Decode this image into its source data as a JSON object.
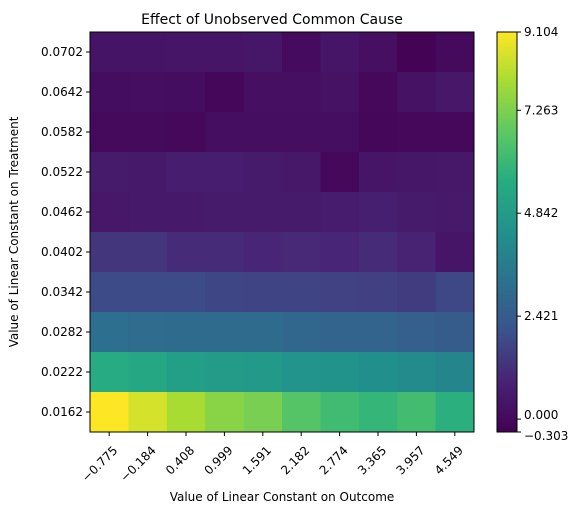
{
  "chart_data": {
    "type": "heatmap",
    "title": "Effect of Unobserved Common Cause",
    "xlabel": "Value of Linear Constant on Outcome",
    "ylabel": "Value of Linear Constant on Treatment",
    "x_tick_labels": [
      "−0.775",
      "−0.184",
      "0.408",
      "0.999",
      "1.591",
      "2.182",
      "2.774",
      "3.365",
      "3.957",
      "4.549"
    ],
    "y_tick_labels": [
      "0.0702",
      "0.0642",
      "0.0582",
      "0.0522",
      "0.0462",
      "0.0402",
      "0.0342",
      "0.0282",
      "0.0222",
      "0.0162"
    ],
    "colormap": "viridis",
    "value_range": [
      -0.303,
      9.104
    ],
    "colorbar_ticks": [
      "−0.303",
      "0.000",
      "2.421",
      "4.842",
      "7.263",
      "9.104"
    ],
    "colorbar_tick_values": [
      -0.303,
      0.0,
      2.421,
      4.842,
      7.263,
      9.104
    ],
    "values": [
      [
        0.35,
        0.35,
        0.4,
        0.4,
        0.45,
        0.05,
        0.4,
        0.2,
        -0.25,
        0.0
      ],
      [
        0.1,
        0.15,
        0.1,
        -0.1,
        0.2,
        0.2,
        0.3,
        -0.05,
        0.3,
        0.5
      ],
      [
        0.0,
        0.0,
        -0.05,
        0.15,
        0.15,
        0.15,
        0.15,
        -0.1,
        -0.05,
        -0.05
      ],
      [
        0.6,
        0.55,
        0.7,
        0.7,
        0.6,
        0.5,
        -0.05,
        0.4,
        0.45,
        0.5
      ],
      [
        0.5,
        0.55,
        0.55,
        0.6,
        0.6,
        0.6,
        0.65,
        0.75,
        0.6,
        0.55
      ],
      [
        1.35,
        1.35,
        1.1,
        1.1,
        0.95,
        1.05,
        0.95,
        1.1,
        0.9,
        0.4
      ],
      [
        1.9,
        1.9,
        1.9,
        1.75,
        1.7,
        1.7,
        1.65,
        1.6,
        1.5,
        1.8
      ],
      [
        3.15,
        3.05,
        3.0,
        3.0,
        3.0,
        2.85,
        2.75,
        2.75,
        2.55,
        2.45
      ],
      [
        5.55,
        5.35,
        5.0,
        4.85,
        4.75,
        4.55,
        4.5,
        4.35,
        4.2,
        3.95
      ],
      [
        9.1,
        8.55,
        7.95,
        7.45,
        7.2,
        6.6,
        6.2,
        5.95,
        6.25,
        5.7
      ]
    ]
  }
}
